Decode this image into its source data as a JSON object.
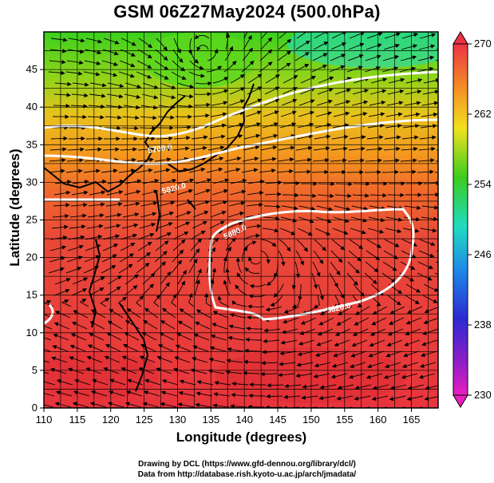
{
  "title": "GSM 06Z27May2024 (500.0hPa)",
  "xaxis": {
    "label": "Longitude (degrees)",
    "ticks": [
      110,
      115,
      120,
      125,
      130,
      135,
      140,
      145,
      150,
      155,
      160,
      165
    ],
    "range": [
      110,
      169
    ]
  },
  "yaxis": {
    "label": "Latitude  (degrees)",
    "ticks": [
      0,
      5,
      10,
      15,
      20,
      25,
      30,
      35,
      40,
      45
    ],
    "range": [
      0,
      50
    ]
  },
  "colorbar": {
    "labels": [
      270,
      262,
      254,
      246,
      238,
      230
    ],
    "range": [
      230,
      270
    ]
  },
  "contours": [
    {
      "label": "5700.0"
    },
    {
      "label": "5820.0"
    },
    {
      "label": "5880.0"
    },
    {
      "label": "5820.0"
    }
  ],
  "credits": {
    "line1": "Drawing by DCL (https://www.gfd-dennou.org/library/dcl/)",
    "line2": "Data from http://database.rish.kyoto-u.ac.jp/arch/jmadata/"
  },
  "colors": {
    "warm": "#e8323a",
    "mid": "#f08a1e",
    "green": "#3fc61e",
    "cyan": "#1edcc8",
    "contour": "#ffffff",
    "grid": "#000000"
  }
}
